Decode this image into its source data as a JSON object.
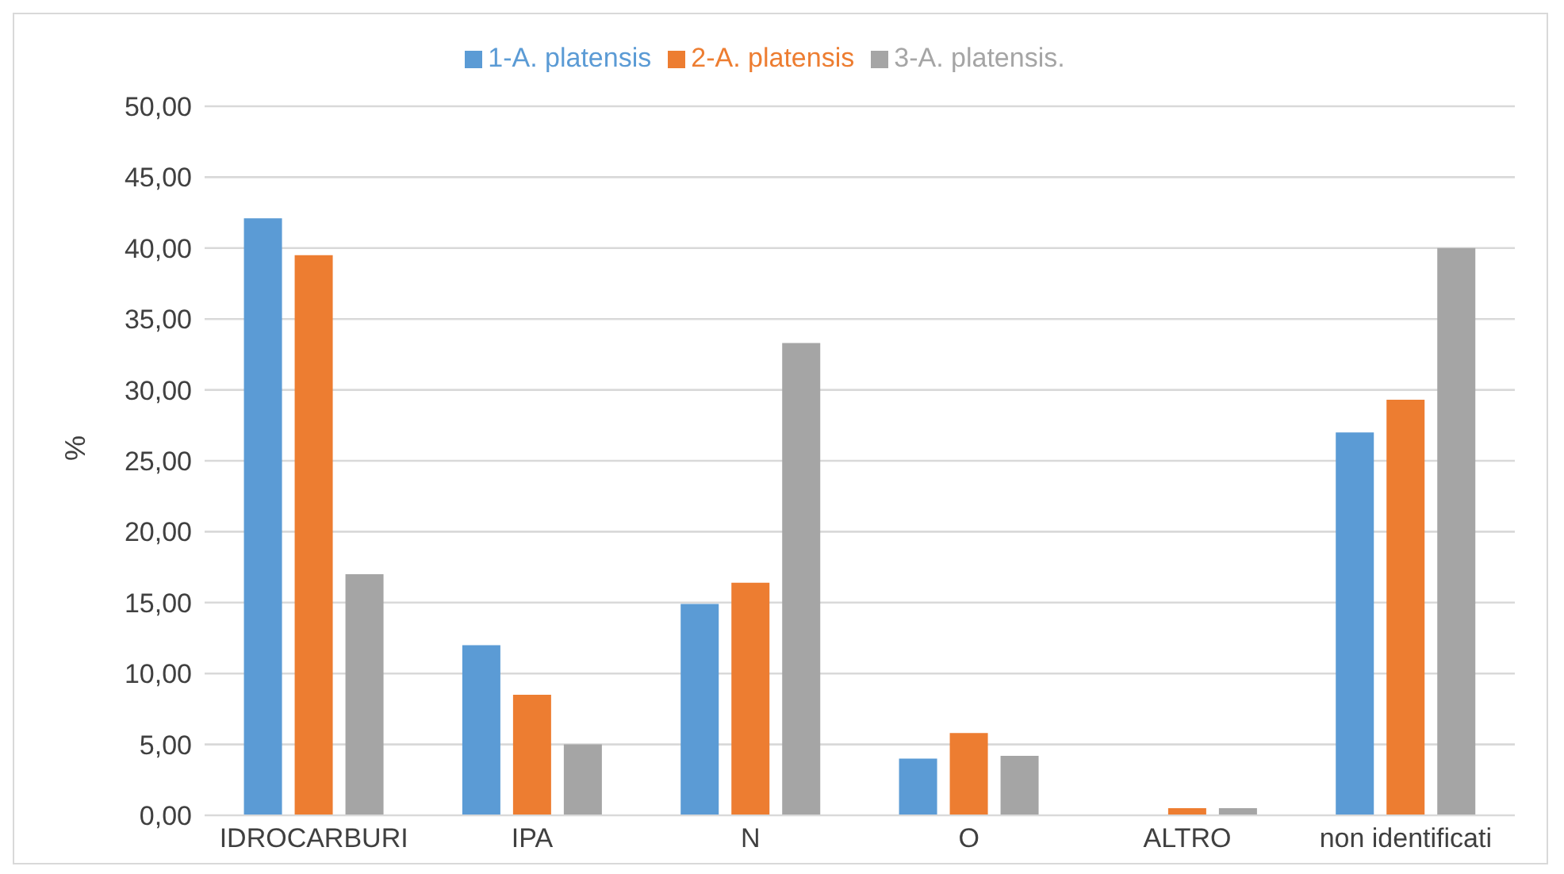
{
  "chart_data": {
    "type": "bar",
    "categories": [
      "IDROCARBURI",
      "IPA",
      "N",
      "O",
      "ALTRO",
      "non identificati"
    ],
    "series": [
      {
        "name": "1-A. platensis",
        "color": "#5b9bd5",
        "values": [
          42.1,
          12.0,
          14.9,
          4.0,
          0,
          27.0
        ]
      },
      {
        "name": "2-A. platensis",
        "color": "#ed7d31",
        "values": [
          39.5,
          8.5,
          16.4,
          5.8,
          0.5,
          29.3
        ]
      },
      {
        "name": "3-A. platensis.",
        "color": "#a5a5a5",
        "values": [
          17.0,
          5.0,
          33.3,
          4.2,
          0.5,
          40.0
        ]
      }
    ],
    "ylabel": "%",
    "ylim": [
      0,
      50
    ],
    "yticks": [
      {
        "value": 0,
        "label": "0,00"
      },
      {
        "value": 5,
        "label": "5,00"
      },
      {
        "value": 10,
        "label": "10,00"
      },
      {
        "value": 15,
        "label": "15,00"
      },
      {
        "value": 20,
        "label": "20,00"
      },
      {
        "value": 25,
        "label": "25,00"
      },
      {
        "value": 30,
        "label": "30,00"
      },
      {
        "value": 35,
        "label": "35,00"
      },
      {
        "value": 40,
        "label": "40,00"
      },
      {
        "value": 45,
        "label": "45,00"
      },
      {
        "value": 50,
        "label": "50,00"
      }
    ],
    "grid": "y",
    "legend": "top"
  }
}
